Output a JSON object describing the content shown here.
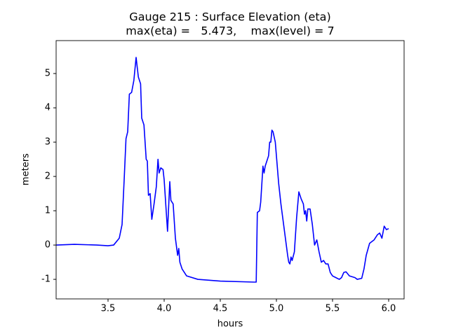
{
  "chart_data": {
    "type": "line",
    "title": "Gauge 215 : Surface Elevation (eta)",
    "subtitle": "max(eta) =   5.473,    max(level) = 7",
    "x_label": "hours",
    "y_label": "meters",
    "color": "#0000ff",
    "x": [
      3.04,
      3.2,
      3.4,
      3.5,
      3.55,
      3.6,
      3.625,
      3.645,
      3.66,
      3.675,
      3.69,
      3.71,
      3.73,
      3.75,
      3.77,
      3.79,
      3.8,
      3.82,
      3.84,
      3.85,
      3.86,
      3.875,
      3.89,
      3.91,
      3.93,
      3.945,
      3.955,
      3.97,
      3.99,
      4.0,
      4.03,
      4.05,
      4.06,
      4.08,
      4.1,
      4.12,
      4.13,
      4.14,
      4.16,
      4.2,
      4.3,
      4.5,
      4.8,
      4.82,
      4.83,
      4.85,
      4.86,
      4.88,
      4.89,
      4.9,
      4.93,
      4.94,
      4.95,
      4.96,
      4.97,
      4.99,
      5.0,
      5.02,
      5.04,
      5.06,
      5.08,
      5.1,
      5.11,
      5.12,
      5.13,
      5.14,
      5.16,
      5.18,
      5.2,
      5.22,
      5.24,
      5.25,
      5.26,
      5.27,
      5.28,
      5.3,
      5.32,
      5.34,
      5.36,
      5.38,
      5.4,
      5.42,
      5.44,
      5.46,
      5.48,
      5.5,
      5.53,
      5.56,
      5.58,
      5.6,
      5.62,
      5.65,
      5.7,
      5.72,
      5.76,
      5.78,
      5.8,
      5.83,
      5.85,
      5.87,
      5.9,
      5.92,
      5.94,
      5.96,
      5.98,
      6.0
    ],
    "values": [
      0.0,
      0.02,
      0.0,
      -0.02,
      0.0,
      0.2,
      0.6,
      2.0,
      3.1,
      3.3,
      4.4,
      4.45,
      4.8,
      5.47,
      4.9,
      4.7,
      3.7,
      3.5,
      2.5,
      2.45,
      1.45,
      1.5,
      0.75,
      1.2,
      1.7,
      2.5,
      2.1,
      2.25,
      2.2,
      1.9,
      0.4,
      1.85,
      1.3,
      1.2,
      0.2,
      -0.3,
      -0.1,
      -0.5,
      -0.7,
      -0.9,
      -1.0,
      -1.05,
      -1.08,
      -1.08,
      0.95,
      1.0,
      1.25,
      2.3,
      2.1,
      2.3,
      2.6,
      3.0,
      3.0,
      3.35,
      3.3,
      3.0,
      2.6,
      1.8,
      1.2,
      0.7,
      0.2,
      -0.3,
      -0.5,
      -0.55,
      -0.35,
      -0.45,
      -0.2,
      0.8,
      1.55,
      1.35,
      1.2,
      0.9,
      1.0,
      0.7,
      1.05,
      1.05,
      0.6,
      0.0,
      0.15,
      -0.2,
      -0.5,
      -0.45,
      -0.55,
      -0.55,
      -0.8,
      -0.9,
      -0.95,
      -1.0,
      -0.95,
      -0.8,
      -0.78,
      -0.9,
      -0.95,
      -1.0,
      -0.97,
      -0.7,
      -0.3,
      0.05,
      0.1,
      0.15,
      0.3,
      0.35,
      0.2,
      0.55,
      0.45,
      0.48
    ],
    "xlim": [
      3.0375,
      6.1375
    ],
    "ylim": [
      -1.57,
      5.96
    ],
    "xticks": [
      3.5,
      {
        "value": 4,
        "label": "4.0"
      },
      4.5,
      {
        "value": 5,
        "label": "5.0"
      },
      5.5,
      {
        "value": 6,
        "label": "6.0"
      }
    ],
    "yticks": [
      -1,
      0,
      1,
      2,
      3,
      4,
      5
    ]
  }
}
